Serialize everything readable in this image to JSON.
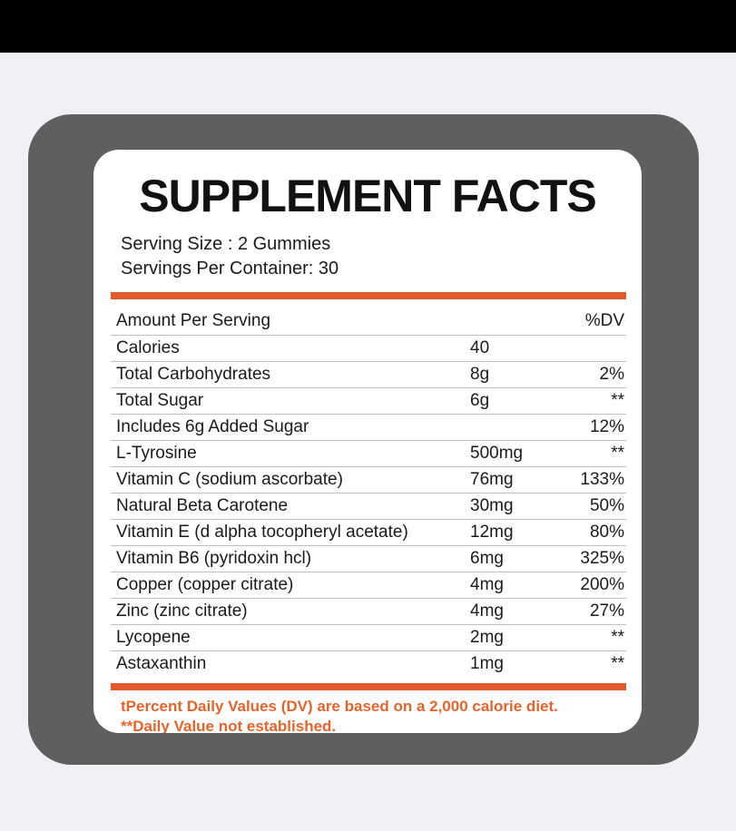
{
  "label": {
    "title": "SUPPLEMENT FACTS",
    "serving_size": "Serving Size : 2 Gummies",
    "servings_per_container": "Servings Per Container: 30",
    "table": {
      "header": {
        "amount_per_serving": "Amount Per Serving",
        "dv": "%DV"
      },
      "rows": [
        {
          "name": "Calories",
          "amount": "40",
          "dv": ""
        },
        {
          "name": "Total Carbohydrates",
          "amount": "8g",
          "dv": "2%"
        },
        {
          "name": "Total Sugar",
          "amount": "6g",
          "dv": "**"
        },
        {
          "name": "Includes 6g Added Sugar",
          "amount": "",
          "dv": "12%"
        },
        {
          "name": "L-Tyrosine",
          "amount": "500mg",
          "dv": "**"
        },
        {
          "name": "Vitamin C (sodium ascorbate)",
          "amount": "76mg",
          "dv": "133%"
        },
        {
          "name": "Natural Beta Carotene",
          "amount": "30mg",
          "dv": "50%"
        },
        {
          "name": "Vitamin E (d alpha tocopheryl acetate)",
          "amount": "12mg",
          "dv": "80%"
        },
        {
          "name": "Vitamin B6 (pyridoxin hcl)",
          "amount": "6mg",
          "dv": "325%"
        },
        {
          "name": "Copper (copper citrate)",
          "amount": "4mg",
          "dv": "200%"
        },
        {
          "name": "Zinc (zinc citrate)",
          "amount": "4mg",
          "dv": "27%"
        },
        {
          "name": "Lycopene",
          "amount": "2mg",
          "dv": "**"
        },
        {
          "name": "Astaxanthin",
          "amount": "1mg",
          "dv": "**"
        }
      ]
    },
    "footnotes": [
      "tPercent Daily Values (DV) are based on a 2,000 calorie diet.",
      "**Daily Value not established."
    ],
    "colors": {
      "accent_orange": "#e05a2b",
      "footnote_orange": "#e4642c",
      "panel_gray": "#5f5f5f",
      "card_white": "#ffffff",
      "page_background": "#f0f1f5",
      "top_bar_black": "#000000",
      "divider_gray": "#c2c2c2"
    }
  }
}
